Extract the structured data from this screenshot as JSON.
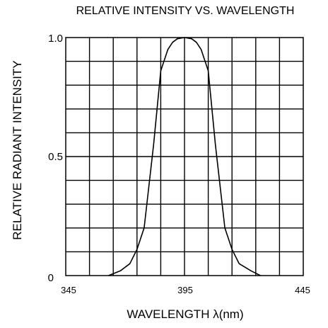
{
  "chart_data": {
    "type": "line",
    "title": "RELATIVE INTENSITY VS. WAVELENGTH",
    "xlabel": "WAVELENGTH λ(nm)",
    "ylabel": "RELATIVE RADIANT INTENSITY",
    "xlim": [
      345,
      445
    ],
    "ylim": [
      0,
      1.0
    ],
    "xticks": [
      "345",
      "395",
      "445"
    ],
    "yticks": [
      "0",
      "0.5",
      "1.0"
    ],
    "grid": true,
    "series": [
      {
        "x": [
          363,
          368,
          372,
          375,
          378,
          382,
          385,
          388,
          390,
          392,
          395,
          398,
          400,
          402,
          405,
          408,
          412,
          415,
          418,
          423,
          427
        ],
        "y": [
          0.0,
          0.02,
          0.05,
          0.11,
          0.2,
          0.55,
          0.86,
          0.95,
          0.98,
          0.995,
          1.0,
          0.995,
          0.98,
          0.95,
          0.86,
          0.55,
          0.2,
          0.11,
          0.05,
          0.02,
          0.0
        ]
      }
    ]
  }
}
